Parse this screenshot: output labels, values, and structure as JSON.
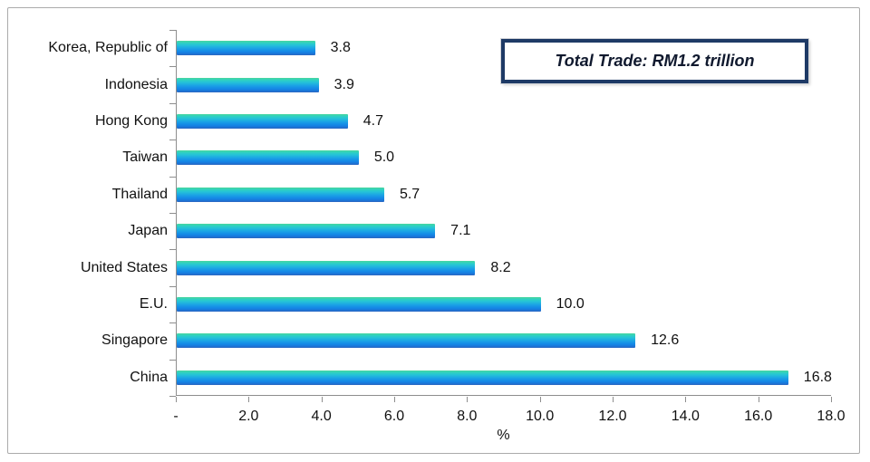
{
  "chart_data": {
    "type": "bar",
    "orientation": "horizontal",
    "title": "",
    "categories": [
      "Korea, Republic of",
      "Indonesia",
      "Hong Kong",
      "Taiwan",
      "Thailand",
      "Japan",
      "United States",
      "E.U.",
      "Singapore",
      "China"
    ],
    "values": [
      3.8,
      3.9,
      4.7,
      5.0,
      5.7,
      7.1,
      8.2,
      10.0,
      12.6,
      16.8
    ],
    "value_labels": [
      "3.8",
      "3.9",
      "4.7",
      "5.0",
      "5.7",
      "7.1",
      "8.2",
      "10.0",
      "12.6",
      "16.8"
    ],
    "xlabel": "%",
    "ylabel": "",
    "xlim": [
      0,
      18
    ],
    "x_ticks": [
      0,
      2,
      4,
      6,
      8,
      10,
      12,
      14,
      16,
      18
    ],
    "x_tick_labels": [
      "-",
      "2.0",
      "4.0",
      "6.0",
      "8.0",
      "10.0",
      "12.0",
      "14.0",
      "16.0",
      "18.0"
    ],
    "grid": false,
    "legend": "none",
    "annotation": "Total Trade: RM1.2 trillion",
    "colors": {
      "bar_gradient": [
        "#49d69e",
        "#2ed0c4",
        "#24c0da",
        "#1a9fe6",
        "#1486e6",
        "#1b74d6",
        "#2e66bd"
      ],
      "axis": "#8e8e8e",
      "text": "#111111",
      "annotation_border": "#1e3a66",
      "annotation_text": "#10192e",
      "frame_border": "#ababab",
      "background": "#ffffff"
    }
  }
}
